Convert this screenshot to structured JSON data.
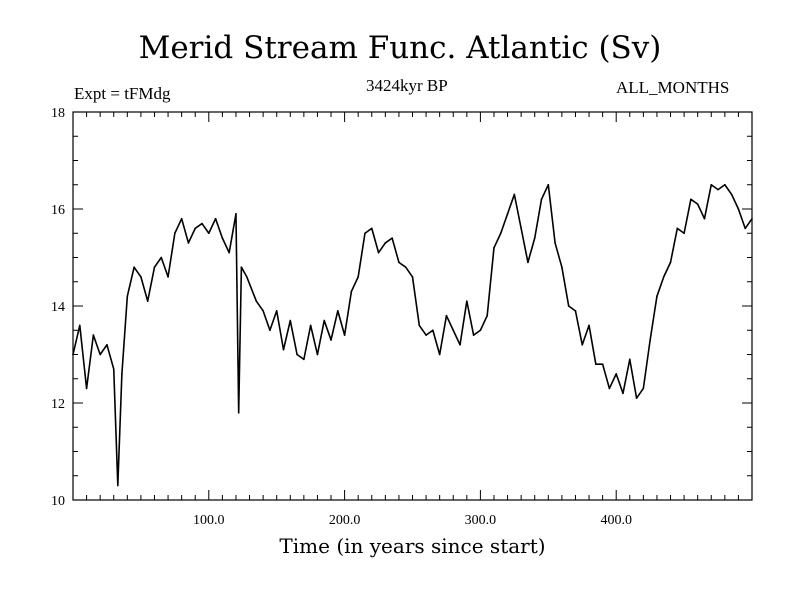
{
  "chart_data": {
    "type": "line",
    "title": "Merid Stream Func. Atlantic (Sv)",
    "subtitle_left": "Expt = tFMdg",
    "subtitle_center": "3424kyr BP",
    "subtitle_right": "ALL_MONTHS",
    "xlabel": "Time (in years since start)",
    "ylabel": "",
    "xlim": [
      0,
      500
    ],
    "ylim": [
      10,
      18
    ],
    "xticks": [
      100,
      200,
      300,
      400
    ],
    "xtick_labels": [
      "100.0",
      "200.0",
      "300.0",
      "400.0"
    ],
    "yticks": [
      10,
      12,
      14,
      16,
      18
    ],
    "ytick_labels": [
      "10",
      "12",
      "14",
      "16",
      "18"
    ],
    "grid": false,
    "series": [
      {
        "name": "Merid Stream Func. Atlantic",
        "x": [
          0,
          5,
          10,
          15,
          20,
          25,
          30,
          33,
          36,
          40,
          45,
          50,
          55,
          60,
          65,
          70,
          75,
          80,
          85,
          90,
          95,
          100,
          105,
          110,
          115,
          120,
          122,
          124,
          128,
          135,
          140,
          145,
          150,
          155,
          160,
          165,
          170,
          175,
          180,
          185,
          190,
          195,
          200,
          205,
          210,
          215,
          220,
          225,
          230,
          235,
          240,
          245,
          250,
          255,
          260,
          265,
          270,
          275,
          280,
          285,
          290,
          295,
          300,
          305,
          310,
          315,
          320,
          325,
          330,
          335,
          340,
          345,
          350,
          355,
          360,
          365,
          370,
          375,
          380,
          385,
          390,
          395,
          400,
          405,
          410,
          415,
          420,
          425,
          430,
          435,
          440,
          445,
          450,
          455,
          460,
          465,
          470,
          475,
          480,
          485,
          490,
          495,
          500
        ],
        "y": [
          13.0,
          13.6,
          12.3,
          13.4,
          13.0,
          13.2,
          12.7,
          10.3,
          12.6,
          14.2,
          14.8,
          14.6,
          14.1,
          14.8,
          15.0,
          14.6,
          15.5,
          15.8,
          15.3,
          15.6,
          15.7,
          15.5,
          15.8,
          15.4,
          15.1,
          15.9,
          11.8,
          14.8,
          14.6,
          14.1,
          13.9,
          13.5,
          13.9,
          13.1,
          13.7,
          13.0,
          12.9,
          13.6,
          13.0,
          13.7,
          13.3,
          13.9,
          13.4,
          14.3,
          14.6,
          15.5,
          15.6,
          15.1,
          15.3,
          15.4,
          14.9,
          14.8,
          14.6,
          13.6,
          13.4,
          13.5,
          13.0,
          13.8,
          13.5,
          13.2,
          14.1,
          13.4,
          13.5,
          13.8,
          15.2,
          15.5,
          15.9,
          16.3,
          15.6,
          14.9,
          15.4,
          16.2,
          16.5,
          15.3,
          14.8,
          14.0,
          13.9,
          13.2,
          13.6,
          12.8,
          12.8,
          12.3,
          12.6,
          12.2,
          12.9,
          12.1,
          12.3,
          13.3,
          14.2,
          14.6,
          14.9,
          15.6,
          15.5,
          16.2,
          16.1,
          15.8,
          16.5,
          16.4,
          16.5,
          16.3,
          16.0,
          15.6,
          15.8
        ]
      }
    ]
  }
}
